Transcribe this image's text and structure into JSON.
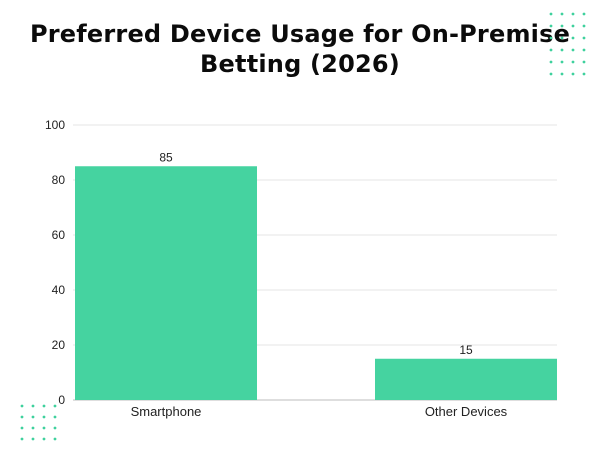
{
  "chart_data": {
    "type": "bar",
    "title_lines": [
      "Preferred Device Usage for On-Premise",
      "Betting (2026)"
    ],
    "categories": [
      "Smartphone",
      "Other Devices"
    ],
    "values": [
      85,
      15
    ],
    "data_labels": [
      "85",
      "15"
    ],
    "ylim": [
      0,
      100
    ],
    "yticks": [
      "0",
      "20",
      "40",
      "60",
      "80",
      "100"
    ],
    "ytick_values": [
      0,
      20,
      40,
      60,
      80,
      100
    ],
    "xlabel": "",
    "ylabel": "",
    "grid": "horizontal",
    "bar_color": "#45d3a0",
    "grid_color": "#e6e6e6",
    "axis_color": "#bdbdbd",
    "dot_color": "#3fd19d"
  }
}
